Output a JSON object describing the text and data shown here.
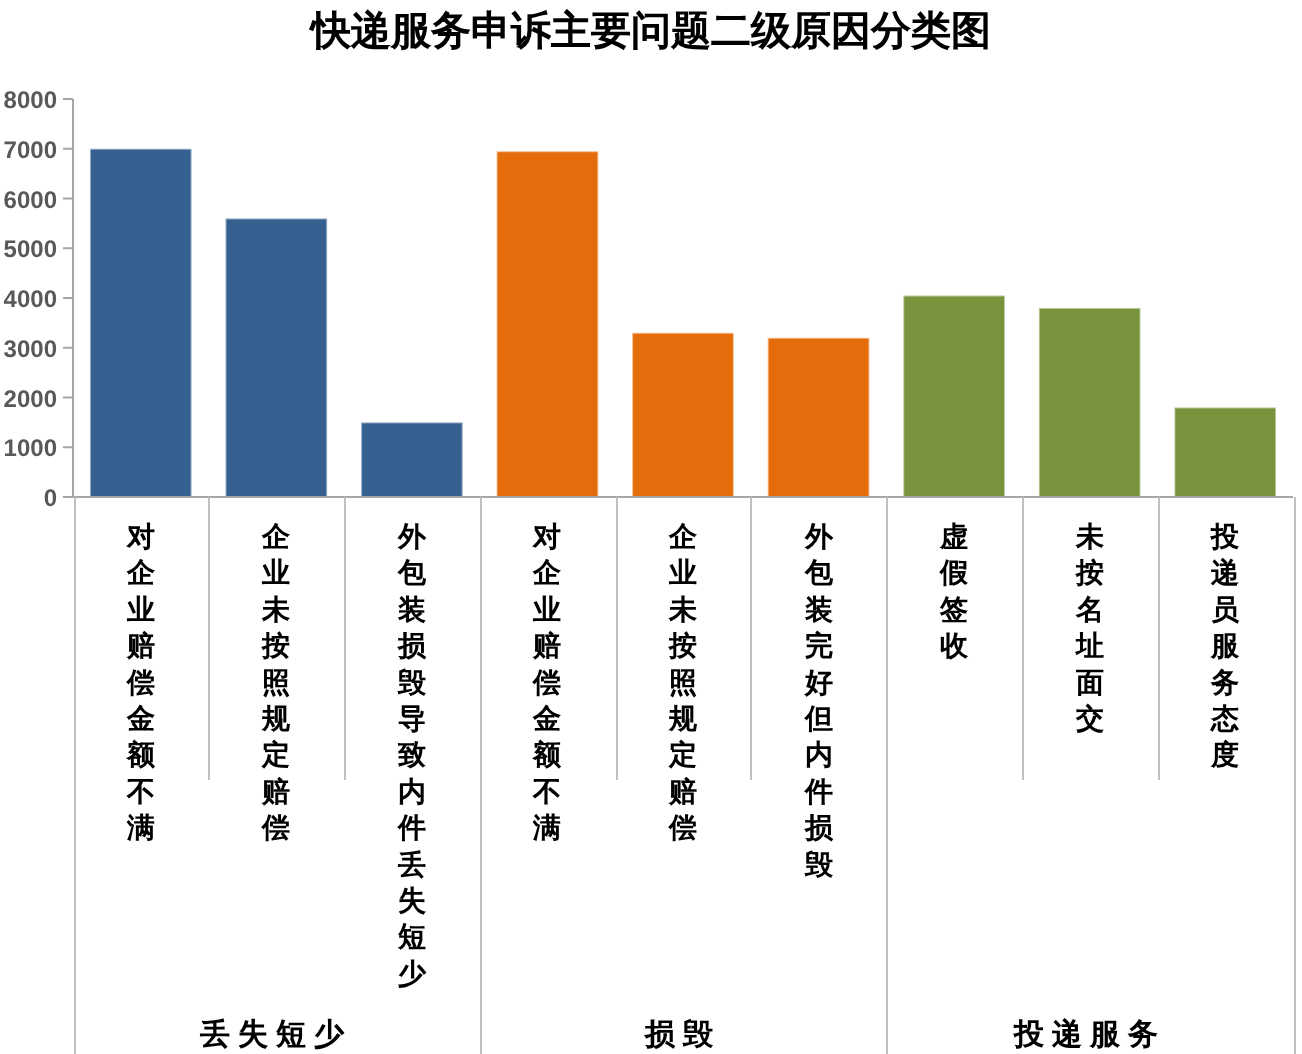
{
  "chart_data": {
    "type": "bar",
    "title": "快递服务申诉主要问题二级原因分类图",
    "categories": [
      "对企业赔偿金额不满",
      "企业未按照规定赔偿",
      "外包装损毁导致内件丢失短少",
      "对企业赔偿金额不满",
      "企业未按照规定赔偿",
      "外包装完好但内件损毁",
      "虚假签收",
      "未按名址面交",
      "投递员服务态度"
    ],
    "series": [
      {
        "color": "#35608f",
        "values": [
          7000,
          5600,
          1500,
          null,
          null,
          null,
          null,
          null,
          null
        ]
      },
      {
        "color": "#e46c0a",
        "values": [
          null,
          null,
          null,
          6950,
          3300,
          3200,
          null,
          null,
          null
        ]
      },
      {
        "color": "#77933c",
        "values": [
          null,
          null,
          null,
          null,
          null,
          null,
          4050,
          3800,
          1800
        ]
      }
    ],
    "stacked": true,
    "ylim": [
      0,
      8000
    ],
    "yticks": [
      0,
      1000,
      2000,
      3000,
      4000,
      5000,
      6000,
      7000,
      8000
    ],
    "annotations": [
      "丢失短少",
      "损毁",
      "投递服务"
    ]
  }
}
